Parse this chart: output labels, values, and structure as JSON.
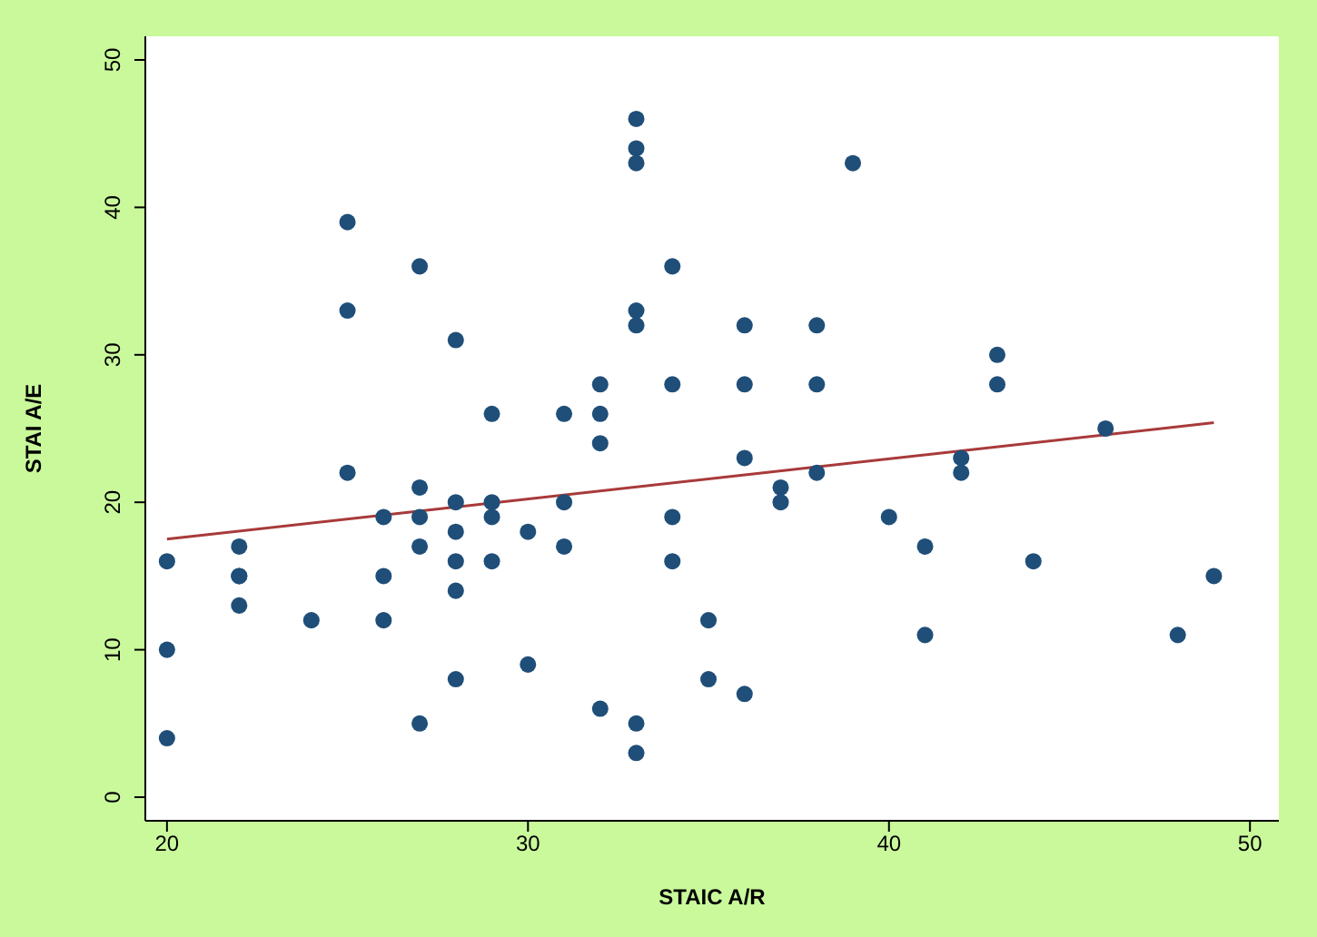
{
  "chart_data": {
    "type": "scatter",
    "xlabel": "STAIC A/R",
    "ylabel": "STAI A/E",
    "xlim": [
      19.4,
      50.8
    ],
    "ylim": [
      -1.6,
      51.6
    ],
    "xticks": [
      20,
      30,
      40,
      50
    ],
    "yticks": [
      0,
      10,
      20,
      30,
      40,
      50
    ],
    "marker": "circle",
    "series": [
      {
        "color": "#1f4e79",
        "x": [
          20,
          20,
          20,
          22,
          22,
          22,
          22,
          24,
          25,
          25,
          25,
          26,
          26,
          26,
          27,
          27,
          27,
          27,
          27,
          28,
          28,
          28,
          28,
          28,
          28,
          29,
          29,
          29,
          29,
          30,
          30,
          31,
          31,
          31,
          32,
          32,
          32,
          32,
          33,
          33,
          33,
          33,
          33,
          33,
          33,
          34,
          34,
          34,
          34,
          35,
          35,
          36,
          36,
          36,
          36,
          37,
          37,
          38,
          38,
          38,
          39,
          40,
          41,
          41,
          42,
          42,
          43,
          43,
          44,
          46,
          48,
          49
        ],
        "values": [
          16,
          10,
          4,
          17,
          15,
          15,
          13,
          12,
          39,
          33,
          22,
          19,
          15,
          12,
          36,
          21,
          19,
          17,
          5,
          31,
          20,
          18,
          16,
          14,
          8,
          26,
          20,
          19,
          16,
          18,
          9,
          26,
          20,
          17,
          28,
          26,
          24,
          6,
          46,
          44,
          43,
          33,
          32,
          5,
          3,
          36,
          28,
          19,
          16,
          12,
          8,
          32,
          28,
          23,
          7,
          21,
          20,
          32,
          28,
          22,
          43,
          19,
          17,
          11,
          23,
          22,
          30,
          28,
          16,
          25,
          11,
          15
        ]
      },
      {
        "type": "line",
        "color": "#a83a3a",
        "marker": "none",
        "line_style": "solid",
        "x": [
          20,
          49
        ],
        "values": [
          17.5,
          25.4
        ]
      }
    ]
  }
}
